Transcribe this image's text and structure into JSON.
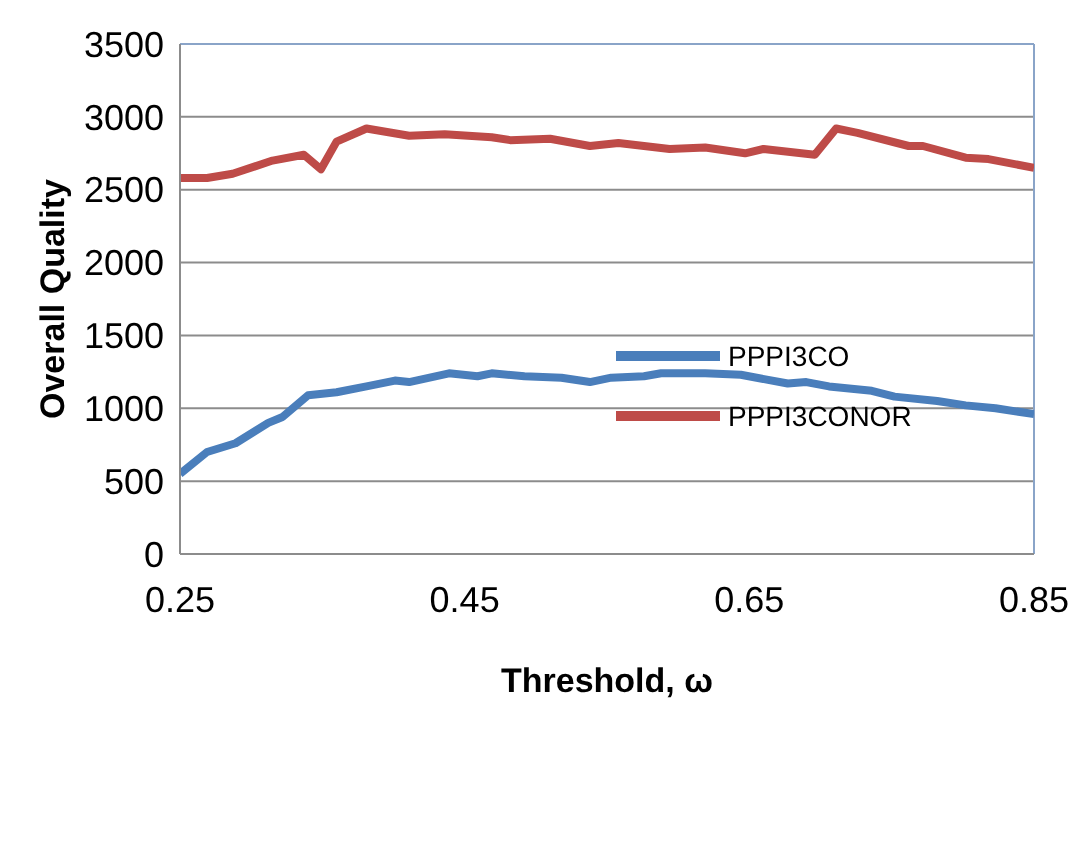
{
  "chart_data": {
    "type": "line",
    "xlabel": "Threshold, ω",
    "ylabel": "Overall Quality",
    "xlim": [
      0.25,
      0.85
    ],
    "xticks": [
      0.25,
      0.45,
      0.65,
      0.85
    ],
    "ylim": [
      0,
      3500
    ],
    "yticks": [
      0,
      500,
      1000,
      1500,
      2000,
      2500,
      3000,
      3500
    ],
    "grid": "y",
    "legend": "right",
    "marker": "none",
    "line_style": "solid",
    "series": [
      {
        "name": "PPPI3CO",
        "color": "#4a7ebb",
        "x": [
          0.25,
          0.269,
          0.289,
          0.312,
          0.322,
          0.34,
          0.36,
          0.381,
          0.401,
          0.411,
          0.439,
          0.459,
          0.469,
          0.492,
          0.518,
          0.538,
          0.553,
          0.576,
          0.588,
          0.619,
          0.644,
          0.677,
          0.69,
          0.706,
          0.736,
          0.752,
          0.782,
          0.802,
          0.823,
          0.85
        ],
        "values": [
          550,
          700,
          760,
          900,
          940,
          1090,
          1110,
          1150,
          1190,
          1180,
          1240,
          1220,
          1240,
          1220,
          1210,
          1180,
          1210,
          1220,
          1240,
          1240,
          1230,
          1170,
          1180,
          1150,
          1120,
          1080,
          1050,
          1020,
          1000,
          960
        ]
      },
      {
        "name": "PPPI3CONOR",
        "color": "#be4b48",
        "x": [
          0.25,
          0.269,
          0.287,
          0.315,
          0.337,
          0.349,
          0.36,
          0.381,
          0.411,
          0.436,
          0.469,
          0.482,
          0.51,
          0.538,
          0.558,
          0.594,
          0.619,
          0.647,
          0.66,
          0.696,
          0.711,
          0.726,
          0.762,
          0.772,
          0.802,
          0.818,
          0.85
        ],
        "values": [
          2580,
          2580,
          2610,
          2700,
          2740,
          2640,
          2830,
          2920,
          2870,
          2880,
          2860,
          2840,
          2850,
          2800,
          2820,
          2780,
          2790,
          2750,
          2780,
          2740,
          2920,
          2890,
          2800,
          2800,
          2720,
          2710,
          2650
        ]
      }
    ]
  }
}
